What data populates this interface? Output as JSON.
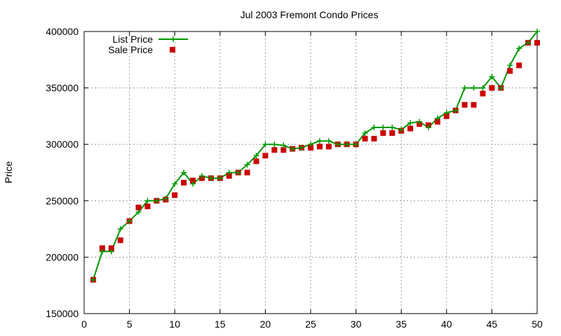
{
  "chart_data": {
    "type": "line",
    "title": "Jul 2003 Fremont Condo Prices",
    "xlabel": "",
    "ylabel": "Price",
    "xlim": [
      0,
      50
    ],
    "ylim": [
      150000,
      400000
    ],
    "x_ticks": [
      0,
      5,
      10,
      15,
      20,
      25,
      30,
      35,
      40,
      45,
      50
    ],
    "y_ticks": [
      150000,
      200000,
      250000,
      300000,
      350000,
      400000
    ],
    "grid": true,
    "legend_position": "top-left",
    "x": [
      1,
      2,
      3,
      4,
      5,
      6,
      7,
      8,
      9,
      10,
      11,
      12,
      13,
      14,
      15,
      16,
      17,
      18,
      19,
      20,
      21,
      22,
      23,
      24,
      25,
      26,
      27,
      28,
      29,
      30,
      31,
      32,
      33,
      34,
      35,
      36,
      37,
      38,
      39,
      40,
      41,
      42,
      43,
      44,
      45,
      46,
      47,
      48,
      49,
      50
    ],
    "series": [
      {
        "name": "List Price",
        "style": "line-points",
        "color": "#009900",
        "values": [
          180000,
          205000,
          205000,
          225000,
          232000,
          240000,
          250000,
          250000,
          252000,
          265000,
          275000,
          265000,
          272000,
          270000,
          270000,
          275000,
          275000,
          282000,
          290000,
          300000,
          300000,
          299000,
          296000,
          297000,
          300000,
          303000,
          303000,
          300000,
          300000,
          300000,
          310000,
          315000,
          315000,
          315000,
          313000,
          319000,
          320000,
          315000,
          323000,
          328000,
          330000,
          350000,
          350000,
          350000,
          360000,
          350000,
          370000,
          385000,
          390000,
          400000
        ]
      },
      {
        "name": "Sale Price",
        "style": "points",
        "color": "#cc0000",
        "values": [
          180000,
          208000,
          208000,
          215000,
          232000,
          244000,
          245000,
          250000,
          251000,
          255000,
          266000,
          268000,
          270000,
          270000,
          270000,
          272000,
          275000,
          275000,
          285000,
          290000,
          295000,
          295000,
          296000,
          297000,
          297000,
          298000,
          298000,
          300000,
          300000,
          300000,
          305000,
          305000,
          310000,
          310000,
          312000,
          314000,
          318000,
          317000,
          320000,
          325000,
          330000,
          335000,
          335000,
          345000,
          350000,
          350000,
          365000,
          370000,
          390000,
          390000
        ]
      }
    ]
  }
}
